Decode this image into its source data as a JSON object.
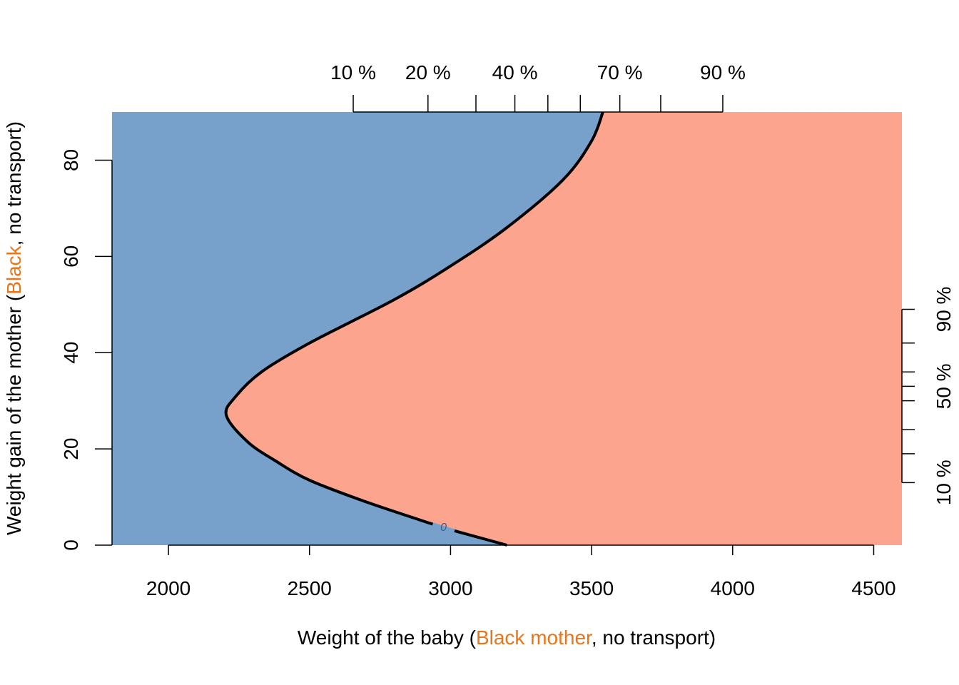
{
  "chart_data": {
    "type": "contour",
    "x_axis": {
      "label_parts": [
        "Weight of the baby (",
        "Black mother",
        ", no transport)"
      ],
      "range": [
        1800,
        4600
      ],
      "ticks": [
        2000,
        2500,
        3000,
        3500,
        4000,
        4500
      ],
      "tick_labels": [
        "2000",
        "2500",
        "3000",
        "3500",
        "4000",
        "4500"
      ]
    },
    "y_axis": {
      "label_parts": [
        "Weight gain of the mother (",
        "Black",
        ", no transport)"
      ],
      "range": [
        0,
        90
      ],
      "ticks": [
        0,
        20,
        40,
        60,
        80
      ],
      "tick_labels": [
        "0",
        "20",
        "40",
        "60",
        "80"
      ]
    },
    "x_quantiles": {
      "positions": [
        2655,
        2920,
        3090,
        3228,
        3345,
        3460,
        3600,
        3745,
        3965
      ],
      "labels": [
        {
          "at": 2655,
          "text": "10 %"
        },
        {
          "at": 2920,
          "text": "20 %"
        },
        {
          "at": 3228,
          "text": "40 %"
        },
        {
          "at": 3600,
          "text": "70 %"
        },
        {
          "at": 3965,
          "text": "90 %"
        }
      ]
    },
    "y_quantiles": {
      "positions": [
        13,
        19,
        24,
        30,
        33,
        36,
        42,
        49
      ],
      "labels": [
        {
          "at": 13,
          "text": "10 %"
        },
        {
          "at": 33,
          "text": "50 %"
        },
        {
          "at": 49,
          "text": "90 %"
        }
      ]
    },
    "decision_boundary": {
      "level_label": "0",
      "label_at": [
        2975,
        3.6
      ],
      "points": [
        [
          3200,
          0
        ],
        [
          3000,
          3.6
        ],
        [
          2700,
          9
        ],
        [
          2500,
          13.5
        ],
        [
          2380,
          17.5
        ],
        [
          2280,
          21.5
        ],
        [
          2205,
          27
        ],
        [
          2240,
          31
        ],
        [
          2330,
          36
        ],
        [
          2500,
          42
        ],
        [
          2800,
          51
        ],
        [
          3000,
          58
        ],
        [
          3200,
          66
        ],
        [
          3400,
          76
        ],
        [
          3500,
          84
        ],
        [
          3540,
          90
        ]
      ]
    },
    "regions": [
      {
        "name": "left-region",
        "color": "#77a1cb"
      },
      {
        "name": "right-region",
        "color": "#fca48e"
      }
    ],
    "colors": {
      "highlight": "#e8751a"
    }
  }
}
